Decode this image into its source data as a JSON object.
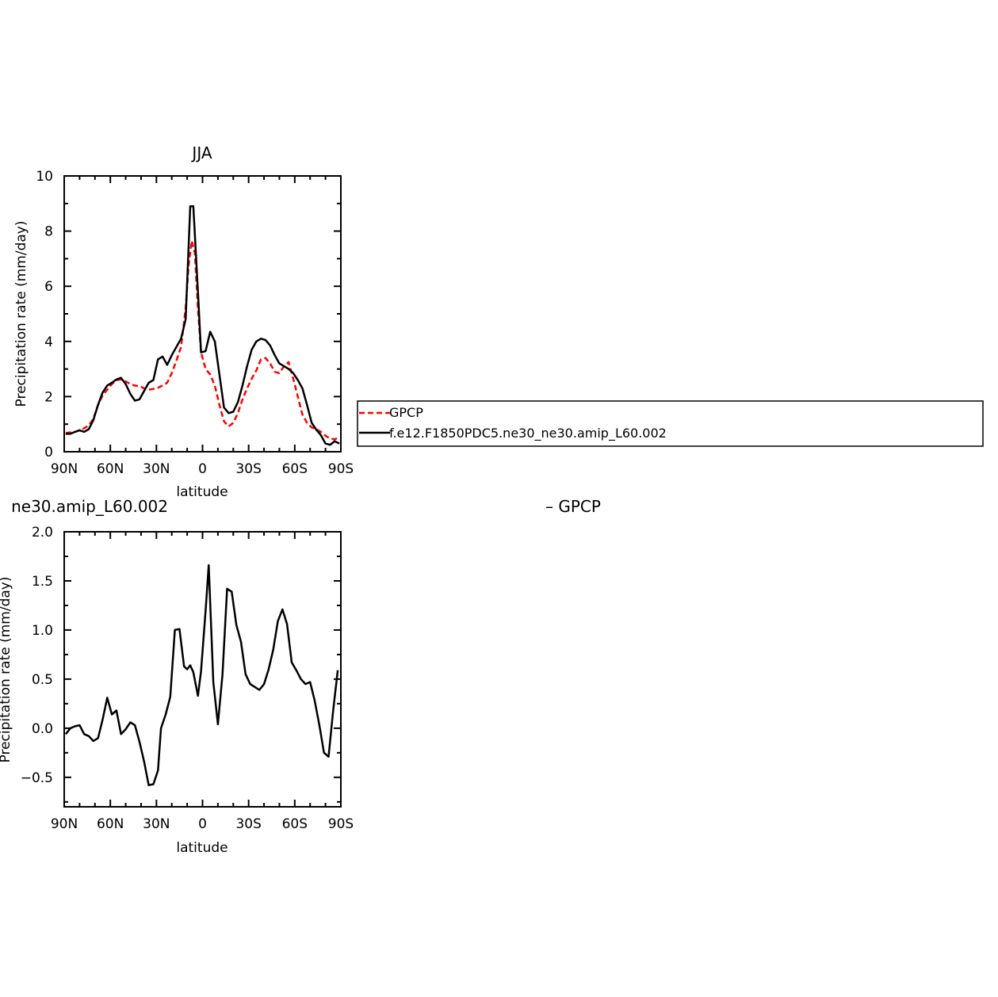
{
  "chart_data": [
    {
      "type": "line",
      "title": "JJA",
      "xlabel": "latitude",
      "ylabel": "Precipitation rate (mm/day)",
      "xlim": [
        90,
        -90
      ],
      "ylim": [
        0,
        10
      ],
      "yticks": [
        "0",
        "2",
        "4",
        "6",
        "8",
        "10"
      ],
      "yticks_values": [
        0,
        2,
        4,
        6,
        8,
        10
      ],
      "xticks": [
        "90N",
        "60N",
        "30N",
        "0",
        "30S",
        "60S",
        "90S"
      ],
      "xticks_values": [
        90,
        60,
        30,
        0,
        -30,
        -60,
        -90
      ],
      "grid": false,
      "legend": "right",
      "series": [
        {
          "name": "GPCP",
          "color": "#ff0000",
          "dash": "dashed",
          "x": [
            89,
            86,
            83,
            80,
            77,
            74,
            71,
            68,
            65,
            62,
            59,
            56,
            53,
            50,
            47,
            44,
            41,
            38,
            35,
            32,
            29,
            26,
            23,
            20,
            17,
            14,
            11,
            9,
            7,
            5,
            3,
            1,
            -2,
            -5,
            -8,
            -11,
            -14,
            -17,
            -20,
            -23,
            -26,
            -29,
            -32,
            -35,
            -38,
            -41,
            -44,
            -47,
            -50,
            -53,
            -56,
            -59,
            -62,
            -65,
            -68,
            -71,
            -74,
            -77,
            -80,
            -83,
            -86,
            -89
          ],
          "values": [
            0.68,
            0.7,
            0.72,
            0.78,
            0.85,
            0.95,
            1.2,
            1.7,
            2.05,
            2.25,
            2.45,
            2.6,
            2.62,
            2.55,
            2.45,
            2.4,
            2.38,
            2.3,
            2.25,
            2.28,
            2.32,
            2.4,
            2.5,
            2.85,
            3.3,
            3.8,
            5.2,
            6.8,
            7.65,
            7.2,
            5.2,
            3.6,
            3.0,
            2.8,
            2.4,
            1.7,
            1.1,
            0.92,
            1.05,
            1.4,
            1.9,
            2.3,
            2.65,
            2.95,
            3.35,
            3.4,
            3.2,
            2.9,
            2.85,
            3.1,
            3.25,
            2.65,
            2.0,
            1.35,
            1.05,
            0.88,
            0.82,
            0.72,
            0.58,
            0.48,
            0.45,
            0.52
          ]
        },
        {
          "name": "f.e12.F1850PDC5.ne30_ne30.amip_L60.002",
          "color": "#000000",
          "dash": "solid",
          "x": [
            89,
            86,
            83,
            80,
            77,
            74,
            71,
            68,
            65,
            62,
            59,
            56,
            53,
            50,
            47,
            44,
            41,
            38,
            35,
            32,
            29,
            26,
            23,
            20,
            17,
            14,
            11,
            8,
            6,
            3,
            1,
            -2,
            -5,
            -8,
            -11,
            -14,
            -17,
            -20,
            -23,
            -26,
            -29,
            -32,
            -35,
            -38,
            -41,
            -44,
            -47,
            -50,
            -53,
            -56,
            -59,
            -62,
            -65,
            -68,
            -71,
            -74,
            -77,
            -80,
            -83,
            -86,
            -89
          ],
          "values": [
            0.65,
            0.65,
            0.72,
            0.78,
            0.72,
            0.82,
            1.15,
            1.7,
            2.15,
            2.4,
            2.5,
            2.62,
            2.68,
            2.45,
            2.1,
            1.85,
            1.9,
            2.2,
            2.5,
            2.6,
            3.35,
            3.45,
            3.15,
            3.5,
            3.8,
            4.1,
            4.8,
            8.9,
            8.9,
            5.8,
            3.6,
            3.65,
            4.35,
            4.0,
            2.8,
            1.6,
            1.4,
            1.45,
            1.8,
            2.4,
            3.1,
            3.7,
            4.0,
            4.1,
            4.05,
            3.85,
            3.5,
            3.2,
            3.1,
            3.0,
            2.85,
            2.6,
            2.3,
            1.7,
            1.05,
            0.8,
            0.6,
            0.3,
            0.25,
            0.38,
            0.3
          ]
        }
      ]
    },
    {
      "type": "line",
      "title": "ne30.amip_L60.002",
      "title_suffix": "– GPCP",
      "xlabel": "latitude",
      "ylabel": "Precipitation rate (mm/day)",
      "xlim": [
        90,
        -90
      ],
      "ylim": [
        -0.8,
        2.0
      ],
      "yticks": [
        "−0.5",
        "0.0",
        "0.5",
        "1.0",
        "1.5",
        "2.0"
      ],
      "yticks_values": [
        -0.5,
        0.0,
        0.5,
        1.0,
        1.5,
        2.0
      ],
      "xticks": [
        "90N",
        "60N",
        "30N",
        "0",
        "30S",
        "60S",
        "90S"
      ],
      "xticks_values": [
        90,
        60,
        30,
        0,
        -30,
        -60,
        -90
      ],
      "grid": false,
      "series": [
        {
          "color": "#000000",
          "dash": "solid",
          "x": [
            89,
            86,
            83,
            80,
            77,
            74,
            71,
            68,
            65,
            62,
            59,
            56,
            53,
            50,
            47,
            44,
            41,
            38,
            35,
            32,
            29,
            27,
            24,
            21,
            18,
            15,
            12,
            10,
            8,
            6,
            3,
            1,
            -2,
            -4,
            -7,
            -10,
            -13,
            -16,
            -19,
            -22,
            -25,
            -28,
            -31,
            -34,
            -37,
            -40,
            -43,
            -46,
            -49,
            -52,
            -55,
            -58,
            -61,
            -64,
            -67,
            -70,
            -73,
            -76,
            -79,
            -82,
            -85,
            -88
          ],
          "values": [
            -0.06,
            0.0,
            0.02,
            0.03,
            -0.06,
            -0.08,
            -0.13,
            -0.1,
            0.09,
            0.31,
            0.14,
            0.18,
            -0.06,
            -0.01,
            0.06,
            0.03,
            -0.14,
            -0.34,
            -0.58,
            -0.57,
            -0.43,
            0.0,
            0.14,
            0.32,
            1.0,
            1.01,
            0.63,
            0.6,
            0.64,
            0.57,
            0.33,
            0.58,
            1.2,
            1.66,
            0.47,
            0.04,
            0.55,
            1.42,
            1.39,
            1.05,
            0.88,
            0.55,
            0.45,
            0.42,
            0.39,
            0.45,
            0.6,
            0.8,
            1.09,
            1.21,
            1.06,
            0.67,
            0.59,
            0.5,
            0.45,
            0.47,
            0.28,
            0.03,
            -0.25,
            -0.29,
            0.18,
            0.59
          ]
        }
      ]
    }
  ]
}
